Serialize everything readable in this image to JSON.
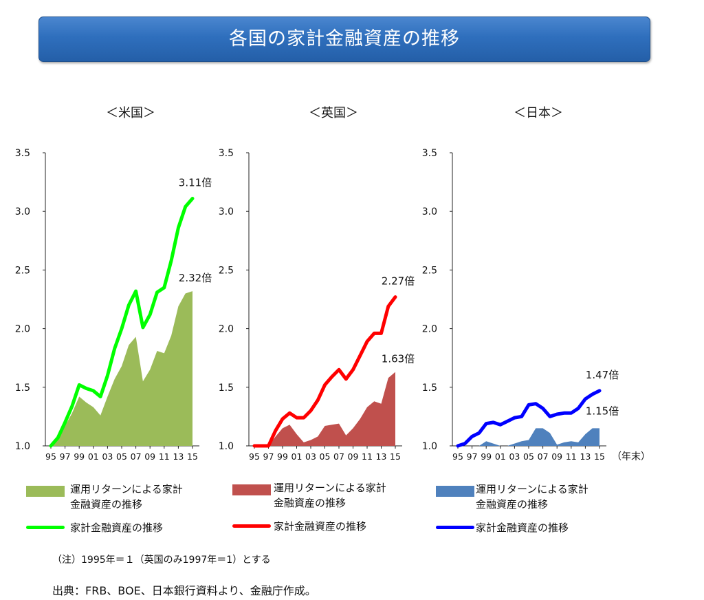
{
  "title": "各国の家計金融資産の推移",
  "year_suffix": "（年末）",
  "note": "（注）1995年＝１（英国のみ1997年＝1）とする",
  "source": "出典：FRB、BOE、日本銀行資料より、金融庁作成。",
  "legends": [
    {
      "area_label_1": "運用リターンによる家計",
      "area_label_2": "金融資産の推移",
      "line_label": "家計金融資産の推移"
    },
    {
      "area_label_1": "運用リターンによる家計",
      "area_label_2": "金融資産の推移",
      "line_label": "家計金融資産の推移"
    },
    {
      "area_label_1": "運用リターンによる家計",
      "area_label_2": "金融資産の推移",
      "line_label": "家計金融資産の推移"
    }
  ],
  "chart_data": [
    {
      "type": "area",
      "title": "＜米国＞",
      "ylim": [
        1.0,
        3.5
      ],
      "yticks": [
        "1.0",
        "1.5",
        "2.0",
        "2.5",
        "3.0",
        "3.5"
      ],
      "xticks": [
        "95",
        "97",
        "99",
        "01",
        "03",
        "05",
        "07",
        "09",
        "11",
        "13",
        "15"
      ],
      "x": [
        1995,
        1996,
        1997,
        1998,
        1999,
        2000,
        2001,
        2002,
        2003,
        2004,
        2005,
        2006,
        2007,
        2008,
        2009,
        2010,
        2011,
        2012,
        2013,
        2014,
        2015
      ],
      "colors": {
        "area": "#9bbb59",
        "line": "#00ff00"
      },
      "series": [
        {
          "name": "運用リターンによる家計金融資産の推移",
          "kind": "area",
          "values": [
            1.0,
            1.05,
            1.17,
            1.28,
            1.42,
            1.37,
            1.33,
            1.26,
            1.42,
            1.57,
            1.68,
            1.86,
            1.93,
            1.55,
            1.65,
            1.81,
            1.79,
            1.94,
            2.19,
            2.3,
            2.32
          ]
        },
        {
          "name": "家計金融資産の推移",
          "kind": "line",
          "values": [
            1.0,
            1.07,
            1.2,
            1.34,
            1.52,
            1.49,
            1.47,
            1.42,
            1.6,
            1.83,
            2.0,
            2.2,
            2.32,
            2.01,
            2.12,
            2.31,
            2.35,
            2.58,
            2.86,
            3.04,
            3.11
          ]
        }
      ],
      "annotations": [
        "3.11倍",
        "2.32倍"
      ]
    },
    {
      "type": "area",
      "title": "＜英国＞",
      "ylim": [
        1.0,
        3.5
      ],
      "yticks": [
        "1.0",
        "1.5",
        "2.0",
        "2.5",
        "3.0",
        "3.5"
      ],
      "xticks": [
        "95",
        "97",
        "99",
        "01",
        "03",
        "05",
        "07",
        "09",
        "11",
        "13",
        "15"
      ],
      "x": [
        1995,
        1996,
        1997,
        1998,
        1999,
        2000,
        2001,
        2002,
        2003,
        2004,
        2005,
        2006,
        2007,
        2008,
        2009,
        2010,
        2011,
        2012,
        2013,
        2014,
        2015
      ],
      "colors": {
        "area": "#c0504d",
        "line": "#ff0000"
      },
      "series": [
        {
          "name": "運用リターンによる家計金融資産の推移",
          "kind": "area",
          "values": [
            1.0,
            1.0,
            1.0,
            1.08,
            1.15,
            1.18,
            1.1,
            1.03,
            1.05,
            1.08,
            1.17,
            1.18,
            1.19,
            1.09,
            1.15,
            1.23,
            1.33,
            1.38,
            1.36,
            1.58,
            1.63
          ]
        },
        {
          "name": "家計金融資産の推移",
          "kind": "line",
          "values": [
            1.0,
            1.0,
            1.0,
            1.13,
            1.23,
            1.28,
            1.24,
            1.24,
            1.3,
            1.39,
            1.52,
            1.59,
            1.65,
            1.57,
            1.65,
            1.77,
            1.89,
            1.96,
            1.96,
            2.19,
            2.27
          ]
        }
      ],
      "annotations": [
        "2.27倍",
        "1.63倍"
      ]
    },
    {
      "type": "area",
      "title": "＜日本＞",
      "ylim": [
        1.0,
        3.5
      ],
      "yticks": [
        "1.0",
        "1.5",
        "2.0",
        "2.5",
        "3.0",
        "3.5"
      ],
      "xticks": [
        "95",
        "97",
        "99",
        "01",
        "03",
        "05",
        "07",
        "09",
        "11",
        "13",
        "15"
      ],
      "x": [
        1995,
        1996,
        1997,
        1998,
        1999,
        2000,
        2001,
        2002,
        2003,
        2004,
        2005,
        2006,
        2007,
        2008,
        2009,
        2010,
        2011,
        2012,
        2013,
        2014,
        2015
      ],
      "colors": {
        "area": "#4f81bd",
        "line": "#0000ff"
      },
      "series": [
        {
          "name": "運用リターンによる家計金融資産の推移",
          "kind": "area",
          "values": [
            1.0,
            1.0,
            1.0,
            1.0,
            1.04,
            1.02,
            1.0,
            1.0,
            1.02,
            1.04,
            1.05,
            1.15,
            1.15,
            1.11,
            1.01,
            1.03,
            1.04,
            1.03,
            1.1,
            1.15,
            1.15
          ]
        },
        {
          "name": "家計金融資産の推移",
          "kind": "line",
          "values": [
            1.0,
            1.02,
            1.08,
            1.11,
            1.19,
            1.2,
            1.18,
            1.21,
            1.24,
            1.25,
            1.35,
            1.36,
            1.32,
            1.25,
            1.27,
            1.28,
            1.28,
            1.32,
            1.4,
            1.44,
            1.47
          ]
        }
      ],
      "annotations": [
        "1.47倍",
        "1.15倍"
      ]
    }
  ]
}
